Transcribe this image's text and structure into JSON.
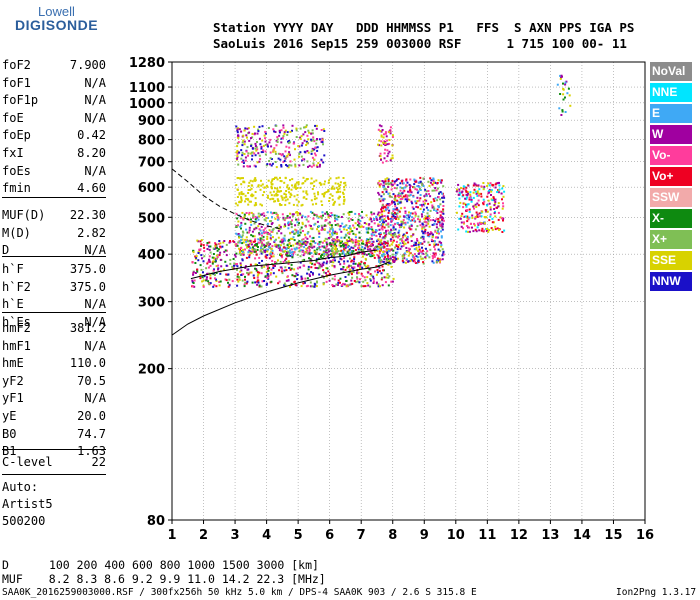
{
  "logo": {
    "line1": "Lowell",
    "line2": "DIGISONDE"
  },
  "header": {
    "line1": "Station YYYY DAY   DDD HHMMSS P1   FFS  S AXN PPS IGA PS",
    "line2": "SaoLuis 2016 Sep15 259 003000 RSF      1 715 100 00- 11"
  },
  "params": {
    "group1": [
      {
        "name": "foF2",
        "value": "7.900"
      },
      {
        "name": "foF1",
        "value": "N/A"
      },
      {
        "name": "foF1p",
        "value": "N/A"
      },
      {
        "name": "foE",
        "value": "N/A"
      },
      {
        "name": "foEp",
        "value": "0.42"
      },
      {
        "name": "fxI",
        "value": "8.20"
      },
      {
        "name": "foEs",
        "value": "N/A"
      },
      {
        "name": "fmin",
        "value": "4.60"
      }
    ],
    "group2": [
      {
        "name": "MUF(D)",
        "value": "22.30"
      },
      {
        "name": "M(D)",
        "value": "2.82"
      },
      {
        "name": "D",
        "value": "N/A"
      }
    ],
    "group3": [
      {
        "name": "h`F",
        "value": "375.0"
      },
      {
        "name": "h`F2",
        "value": "375.0"
      },
      {
        "name": "h`E",
        "value": "N/A"
      },
      {
        "name": "h`Es",
        "value": "N/A"
      }
    ],
    "group4": [
      {
        "name": "hmF2",
        "value": "381.2"
      },
      {
        "name": "hmF1",
        "value": "N/A"
      },
      {
        "name": "hmE",
        "value": "110.0"
      },
      {
        "name": "yF2",
        "value": "70.5"
      },
      {
        "name": "yF1",
        "value": "N/A"
      },
      {
        "name": "yE",
        "value": "20.0"
      },
      {
        "name": "B0",
        "value": "74.7"
      },
      {
        "name": "B1",
        "value": "1.63"
      }
    ],
    "group5": [
      {
        "name": "C-level",
        "value": "22"
      }
    ]
  },
  "auto": {
    "line1": "Auto:",
    "line2": "Artist5",
    "line3": "500200"
  },
  "legend": [
    {
      "label": "NoVal",
      "color": "#8c8c8c"
    },
    {
      "label": "NNE",
      "color": "#00e5ff"
    },
    {
      "label": "E",
      "color": "#3fa9f5"
    },
    {
      "label": "W",
      "color": "#a000a0"
    },
    {
      "label": "Vo-",
      "color": "#ff3c9c"
    },
    {
      "label": "Vo+",
      "color": "#ee0022"
    },
    {
      "label": "SSW",
      "color": "#f2aaaa"
    },
    {
      "label": "X-",
      "color": "#0e8a10"
    },
    {
      "label": "X+",
      "color": "#7fbf55"
    },
    {
      "label": "SSE",
      "color": "#d8d200"
    },
    {
      "label": "NNW",
      "color": "#1a10c8"
    }
  ],
  "muf_table": {
    "d_label": "D",
    "d_values": "100  200  400  600  800 1000 1500 3000 [km]",
    "muf_label": "MUF",
    "muf_values": "8.2  8.3  8.6  9.2  9.9 11.0 14.2 22.3 [MHz]"
  },
  "footer": {
    "left": "SAA0K_2016259003000.RSF / 300fx256h 50 kHz 5.0 km / DPS-4 SAA0K 903 / 2.6 S 315.8 E",
    "right": "Ion2Png 1.3.17"
  },
  "chart_data": {
    "type": "scatter",
    "title": "",
    "xlabel": "",
    "ylabel": "",
    "xlim": [
      1,
      16
    ],
    "ylim": [
      80,
      1280
    ],
    "y_scale": "log",
    "x_ticks": [
      1,
      2,
      3,
      4,
      5,
      6,
      7,
      8,
      9,
      10,
      11,
      12,
      13,
      14,
      15,
      16
    ],
    "y_ticks": [
      80,
      200,
      300,
      400,
      500,
      600,
      700,
      800,
      900,
      1000,
      1100,
      1280
    ],
    "grid": true,
    "clusters": [
      {
        "name": "O-trace F2 low",
        "x_range": [
          1.6,
          8.0
        ],
        "y_range": [
          330,
          440
        ],
        "colors": [
          "#ee0022",
          "#ff3c9c",
          "#0e8a10",
          "#a000a0",
          "#7fbf55",
          "#d8d200",
          "#1a10c8"
        ],
        "count": 900
      },
      {
        "name": "F2 main",
        "x_range": [
          3.0,
          7.5
        ],
        "y_range": [
          400,
          520
        ],
        "colors": [
          "#d8d200",
          "#0e8a10",
          "#7fbf55",
          "#ff3c9c",
          "#a000a0",
          "#3fa9f5"
        ],
        "count": 700
      },
      {
        "name": "F2 upper",
        "x_range": [
          7.5,
          9.6
        ],
        "y_range": [
          380,
          640
        ],
        "colors": [
          "#ee0022",
          "#ff3c9c",
          "#a000a0",
          "#d8d200",
          "#7fbf55",
          "#3fa9f5",
          "#1a10c8"
        ],
        "count": 800
      },
      {
        "name": "F2 high freq",
        "x_range": [
          10.0,
          11.5
        ],
        "y_range": [
          460,
          620
        ],
        "colors": [
          "#ff3c9c",
          "#ee0022",
          "#d8d200",
          "#a000a0",
          "#00e5ff"
        ],
        "count": 250
      },
      {
        "name": "SSE band",
        "x_range": [
          3.0,
          6.5
        ],
        "y_range": [
          540,
          640
        ],
        "colors": [
          "#d8d200"
        ],
        "count": 260
      },
      {
        "name": "Second hop",
        "x_range": [
          3.0,
          5.8
        ],
        "y_range": [
          680,
          880
        ],
        "colors": [
          "#d8d200",
          "#ff3c9c",
          "#7fbf55",
          "#a000a0",
          "#1a10c8"
        ],
        "count": 300
      },
      {
        "name": "Second hop high",
        "x_range": [
          7.5,
          8.0
        ],
        "y_range": [
          700,
          880
        ],
        "colors": [
          "#d8d200",
          "#ff3c9c",
          "#a000a0"
        ],
        "count": 60
      },
      {
        "name": "Sparse 13.5",
        "x_range": [
          13.2,
          13.6
        ],
        "y_range": [
          900,
          1200
        ],
        "colors": [
          "#0e8a10",
          "#3fa9f5",
          "#d8d200",
          "#a000a0"
        ],
        "count": 25
      }
    ],
    "lines": [
      {
        "name": "profile",
        "style": "solid",
        "x": [
          1.0,
          1.5,
          2.0,
          3.0,
          4.0,
          5.0,
          6.0,
          7.0,
          7.5,
          7.9
        ],
        "y": [
          245,
          262,
          275,
          298,
          318,
          336,
          352,
          365,
          370,
          382
        ]
      },
      {
        "name": "trace",
        "style": "solid",
        "x": [
          1.6,
          2.5,
          3.5,
          4.5,
          5.5,
          6.0,
          6.5,
          7.0,
          7.5
        ],
        "y": [
          345,
          360,
          372,
          378,
          385,
          392,
          395,
          405,
          410
        ]
      },
      {
        "name": "model",
        "style": "dashed",
        "x": [
          1.0,
          1.5,
          2.0,
          2.5,
          3.0,
          3.5,
          4.0,
          4.5
        ],
        "y": [
          670,
          620,
          570,
          535,
          510,
          490,
          475,
          465
        ]
      }
    ]
  }
}
